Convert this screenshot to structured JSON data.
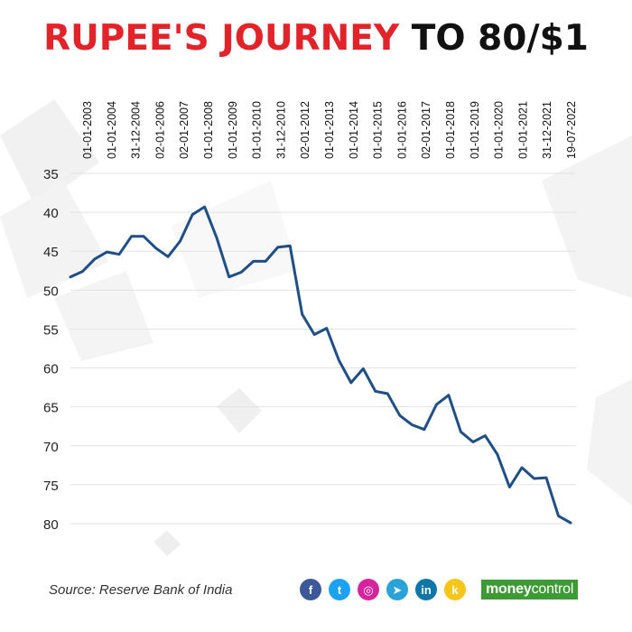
{
  "title": {
    "part1": "RUPEE'S JOURNEY",
    "part2": "TO 80/$1"
  },
  "source": "Source: Reserve Bank of India",
  "brand": {
    "part1": "money",
    "part2": "control"
  },
  "social_icons": [
    {
      "name": "facebook-icon",
      "glyph": "f",
      "color": "#3b5998"
    },
    {
      "name": "twitter-icon",
      "glyph": "t",
      "color": "#1da1f2"
    },
    {
      "name": "instagram-icon",
      "glyph": "◎",
      "color": "#d6249f"
    },
    {
      "name": "telegram-icon",
      "glyph": "➤",
      "color": "#2aa3d8"
    },
    {
      "name": "linkedin-icon",
      "glyph": "in",
      "color": "#0e76a8"
    },
    {
      "name": "koo-icon",
      "glyph": "k",
      "color": "#f5c518"
    }
  ],
  "chart_data": {
    "type": "line",
    "title": "RUPEE'S JOURNEY TO 80/$1",
    "ylim": [
      35,
      80
    ],
    "y_inverted": true,
    "y_ticks": [
      35,
      40,
      45,
      50,
      55,
      60,
      65,
      70,
      75,
      80
    ],
    "grid": "horizontal",
    "line_color": "#1e4f86",
    "x_tick_labels": [
      "01-01-2003",
      "01-01-2004",
      "31-12-2004",
      "02-01-2006",
      "02-01-2007",
      "01-01-2008",
      "01-01-2009",
      "01-01-2010",
      "31-12-2010",
      "02-01-2012",
      "01-01-2013",
      "01-01-2014",
      "01-01-2015",
      "01-01-2016",
      "02-01-2017",
      "01-01-2018",
      "01-01-2019",
      "01-01-2020",
      "01-01-2021",
      "31-12-2021",
      "19-07-2022"
    ],
    "series": [
      {
        "values": [
          48.3,
          47.6,
          46.0,
          45.1,
          45.4,
          43.1,
          43.1,
          44.6,
          45.7,
          43.7,
          40.3,
          39.3,
          43.3,
          48.3,
          47.7,
          46.3,
          46.3,
          44.5,
          44.3,
          53.1,
          55.7,
          54.9,
          59.0,
          61.9,
          60.1,
          63.0,
          63.3,
          66.1,
          67.3,
          67.9,
          64.7,
          63.5,
          68.2,
          69.5,
          68.7,
          71.1,
          75.3,
          72.8,
          74.2,
          74.1,
          79.0,
          79.9
        ]
      }
    ]
  }
}
